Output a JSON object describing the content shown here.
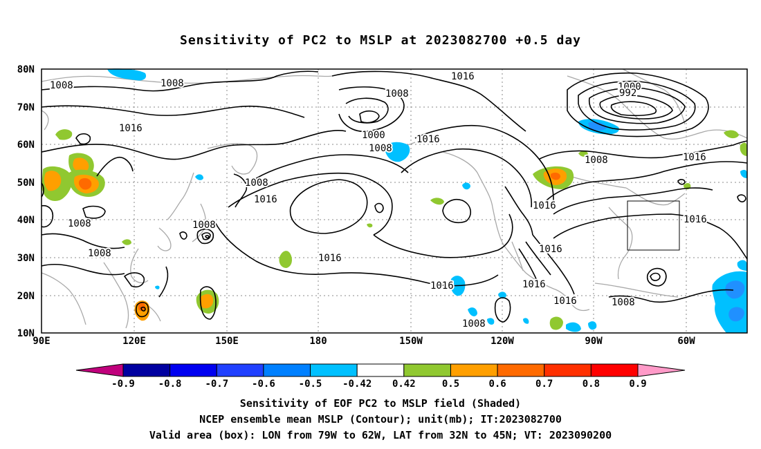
{
  "title": "Sensitivity of PC2 to MSLP at 2023082700 +0.5 day",
  "map": {
    "lat_labels": [
      "80N",
      "70N",
      "60N",
      "50N",
      "40N",
      "30N",
      "20N",
      "10N"
    ],
    "lon_labels": [
      "90E",
      "120E",
      "150E",
      "180",
      "150W",
      "120W",
      "90W",
      "60W"
    ],
    "contour_labels": [
      "1008",
      "1008",
      "1016",
      "1008",
      "1016",
      "1008",
      "1008",
      "1008",
      "1016",
      "1016",
      "1008",
      "1000",
      "1008",
      "1016",
      "1016",
      "1016",
      "1000",
      "992",
      "1008",
      "1016",
      "1016",
      "1016",
      "1016",
      "1008",
      "1016",
      "1008",
      "1016"
    ],
    "box": {
      "lon_from": "79W",
      "lon_to": "62W",
      "lat_from": "32N",
      "lat_to": "45N"
    }
  },
  "colorbar": {
    "labels": [
      "-0.9",
      "-0.8",
      "-0.7",
      "-0.6",
      "-0.5",
      "-0.42",
      "0.42",
      "0.5",
      "0.6",
      "0.7",
      "0.8",
      "0.9"
    ],
    "colors": [
      "#0000a0",
      "#0000f0",
      "#2040ff",
      "#0080ff",
      "#00c0ff",
      "#ffffff",
      "#90c830",
      "#ff9f00",
      "#ff6a00",
      "#ff3000",
      "#ff0000"
    ],
    "low_triangle_color": "#c0007c",
    "high_triangle_color": "#ff9ac8"
  },
  "captions": [
    "Sensitivity of EOF PC2 to MSLP field (Shaded)",
    "NCEP ensemble mean MSLP (Contour); unit(mb); IT:2023082700",
    "Valid area (box): LON from 79W to 62W, LAT from 32N to 45N; VT: 2023090200"
  ]
}
